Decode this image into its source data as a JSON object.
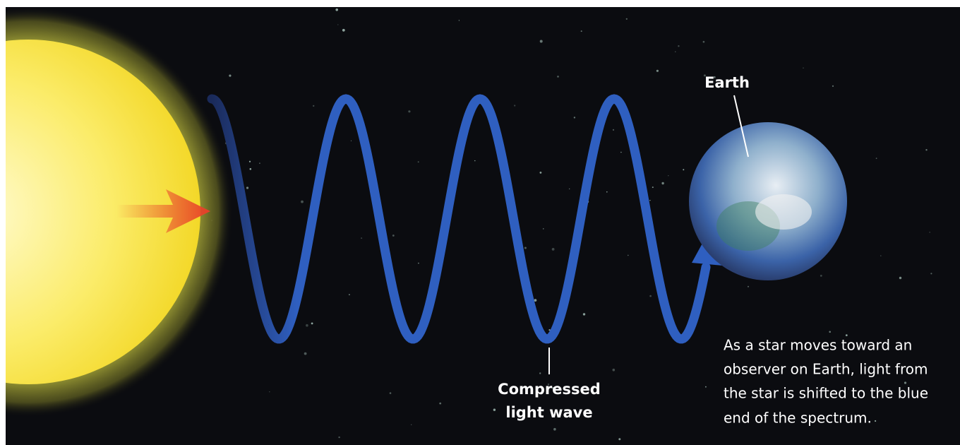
{
  "labels": {
    "earth": "Earth",
    "wave": [
      "Compressed",
      "light wave"
    ]
  },
  "caption": [
    "As a star moves toward an",
    "observer on Earth, light from",
    "the star is shifted to the blue",
    "end of the spectrum."
  ]
}
